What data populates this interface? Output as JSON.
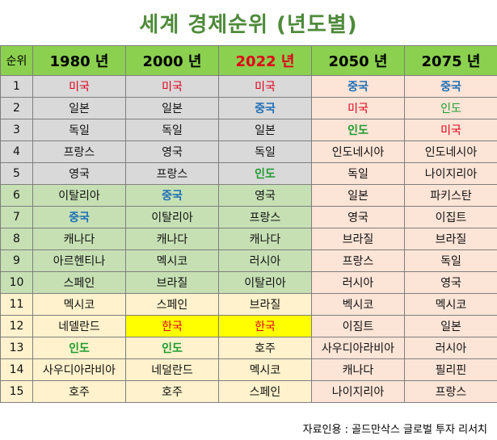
{
  "title": "세계 경제순위 (년도별)",
  "colors": {
    "header_bg": "#8bd04f",
    "group_top5": "#d9d9d9",
    "group_6_10": "#c6e0b4",
    "group_11_15": "#fff2cc",
    "future_bg": "#fce4d6",
    "highlight": "#ffff00",
    "usa": "#e0001b",
    "china": "#1f6fb8",
    "india": "#1e9c2e",
    "korea": "#e0001b",
    "year_2022": "#e0001b",
    "default_text": "#111111"
  },
  "table": {
    "rank_header": "순위",
    "years": [
      {
        "label": "1980 년",
        "color": "#000000"
      },
      {
        "label": "2000 년",
        "color": "#000000"
      },
      {
        "label": "2022 년",
        "color": "#e0001b"
      },
      {
        "label": "2050 년",
        "color": "#000000"
      },
      {
        "label": "2075 년",
        "color": "#000000"
      }
    ],
    "rows": [
      {
        "rank": "1",
        "group": "g1",
        "cells": [
          {
            "text": "미국",
            "color": "#e0001b"
          },
          {
            "text": "미국",
            "color": "#e0001b"
          },
          {
            "text": "미국",
            "color": "#e0001b"
          },
          {
            "text": "중국",
            "color": "#1f6fb8",
            "bold": true
          },
          {
            "text": "중국",
            "color": "#1f6fb8",
            "bold": true
          }
        ]
      },
      {
        "rank": "2",
        "group": "g1",
        "cells": [
          {
            "text": "일본"
          },
          {
            "text": "일본"
          },
          {
            "text": "중국",
            "color": "#1f6fb8",
            "bold": true
          },
          {
            "text": "미국",
            "color": "#e0001b"
          },
          {
            "text": "인도",
            "color": "#1e9c2e"
          }
        ]
      },
      {
        "rank": "3",
        "group": "g1",
        "cells": [
          {
            "text": "독일"
          },
          {
            "text": "독일"
          },
          {
            "text": "일본"
          },
          {
            "text": "인도",
            "color": "#1e9c2e",
            "bold": true
          },
          {
            "text": "미국",
            "color": "#e0001b"
          }
        ]
      },
      {
        "rank": "4",
        "group": "g1",
        "cells": [
          {
            "text": "프랑스"
          },
          {
            "text": "영국"
          },
          {
            "text": "독일"
          },
          {
            "text": "인도네시아"
          },
          {
            "text": "인도네시아"
          }
        ]
      },
      {
        "rank": "5",
        "group": "g1",
        "cells": [
          {
            "text": "영국"
          },
          {
            "text": "프랑스"
          },
          {
            "text": "인도",
            "color": "#1e9c2e",
            "bold": true
          },
          {
            "text": "독일"
          },
          {
            "text": "나이지리아"
          }
        ]
      },
      {
        "rank": "6",
        "group": "g2",
        "cells": [
          {
            "text": "이탈리아"
          },
          {
            "text": "중국",
            "color": "#1f6fb8",
            "bold": true
          },
          {
            "text": "영국"
          },
          {
            "text": "일본"
          },
          {
            "text": "파키스탄"
          }
        ]
      },
      {
        "rank": "7",
        "group": "g2",
        "cells": [
          {
            "text": "중국",
            "color": "#1f6fb8",
            "bold": true
          },
          {
            "text": "이탈리아"
          },
          {
            "text": "프랑스"
          },
          {
            "text": "영국"
          },
          {
            "text": "이집트"
          }
        ]
      },
      {
        "rank": "8",
        "group": "g2",
        "cells": [
          {
            "text": "캐나다"
          },
          {
            "text": "캐나다"
          },
          {
            "text": "캐나다"
          },
          {
            "text": "브라질"
          },
          {
            "text": "브라질"
          }
        ]
      },
      {
        "rank": "9",
        "group": "g2",
        "cells": [
          {
            "text": "아르헨티나"
          },
          {
            "text": "멕시코"
          },
          {
            "text": "러시아"
          },
          {
            "text": "프랑스"
          },
          {
            "text": "독일"
          }
        ]
      },
      {
        "rank": "10",
        "group": "g2",
        "cells": [
          {
            "text": "스페인"
          },
          {
            "text": "브라질"
          },
          {
            "text": "이탈리아"
          },
          {
            "text": "러시아"
          },
          {
            "text": "영국"
          }
        ]
      },
      {
        "rank": "11",
        "group": "g3",
        "cells": [
          {
            "text": "멕시코"
          },
          {
            "text": "스페인"
          },
          {
            "text": "브라질"
          },
          {
            "text": "벡시코"
          },
          {
            "text": "멕시코"
          }
        ]
      },
      {
        "rank": "12",
        "group": "g3",
        "cells": [
          {
            "text": "네델란드"
          },
          {
            "text": "한국",
            "color": "#e0001b",
            "bg": "#ffff00"
          },
          {
            "text": "한국",
            "color": "#e0001b",
            "bg": "#ffff00"
          },
          {
            "text": "이짐트"
          },
          {
            "text": "일본"
          }
        ]
      },
      {
        "rank": "13",
        "group": "g3",
        "cells": [
          {
            "text": "인도",
            "color": "#1e9c2e",
            "bold": true
          },
          {
            "text": "인도",
            "color": "#1e9c2e",
            "bold": true
          },
          {
            "text": "호주"
          },
          {
            "text": "사우디아라비아"
          },
          {
            "text": "러시아"
          }
        ]
      },
      {
        "rank": "14",
        "group": "g3",
        "cells": [
          {
            "text": "사우디아라비아"
          },
          {
            "text": "네덜란드"
          },
          {
            "text": "멕시코"
          },
          {
            "text": "캐나다"
          },
          {
            "text": "필리핀"
          }
        ]
      },
      {
        "rank": "15",
        "group": "g3",
        "cells": [
          {
            "text": "호주"
          },
          {
            "text": "호주"
          },
          {
            "text": "스페인"
          },
          {
            "text": "나이지리아"
          },
          {
            "text": "프랑스"
          }
        ]
      }
    ]
  },
  "source": "자료인용 : 골드만삭스 글로벌 투자 리서치"
}
